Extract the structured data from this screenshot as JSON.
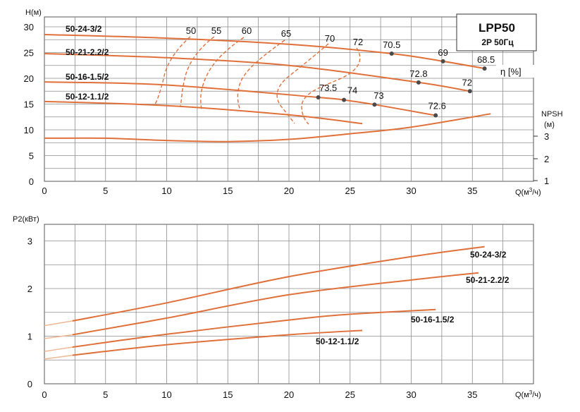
{
  "chart_data": [
    {
      "type": "line",
      "title": "LPP50",
      "subtitle": "2P  50Гц",
      "ylabel": "H(м)",
      "xlabel": "Q(м³/ч)",
      "xlim": [
        0,
        40
      ],
      "ylim": [
        0,
        31
      ],
      "x_ticks": [
        "0",
        "5",
        "10",
        "15",
        "20",
        "25",
        "30",
        "35"
      ],
      "y_ticks": [
        "0",
        "5",
        "10",
        "15",
        "20",
        "25",
        "30"
      ],
      "grid": true,
      "series": [
        {
          "name": "50-24-3/2",
          "x": [
            0,
            10,
            20,
            28.4,
            32.6,
            36
          ],
          "y": [
            28.5,
            27.8,
            26.6,
            24.8,
            23.3,
            21.9
          ]
        },
        {
          "name": "50-21-2.2/2",
          "x": [
            0,
            10,
            20,
            30.6,
            34.8
          ],
          "y": [
            24.8,
            24.0,
            22.5,
            19.2,
            17.5
          ]
        },
        {
          "name": "50-16-1.5/2",
          "x": [
            0,
            10,
            22.4,
            24.5,
            27.0,
            32.0
          ],
          "y": [
            19.3,
            18.7,
            16.3,
            15.8,
            14.9,
            12.8
          ]
        },
        {
          "name": "50-12-1.1/2",
          "x": [
            0,
            10,
            20,
            26
          ],
          "y": [
            15.5,
            14.7,
            12.9,
            11.2
          ]
        }
      ],
      "efficiency_points": [
        {
          "label": "70.5",
          "x": 28.4,
          "y": 24.8
        },
        {
          "label": "69",
          "x": 32.6,
          "y": 23.3
        },
        {
          "label": "68.5",
          "x": 36.0,
          "y": 21.9
        },
        {
          "label": "72.8",
          "x": 30.6,
          "y": 19.2
        },
        {
          "label": "72",
          "x": 34.8,
          "y": 17.5
        },
        {
          "label": "73.5",
          "x": 22.4,
          "y": 16.3
        },
        {
          "label": "74",
          "x": 24.5,
          "y": 15.8
        },
        {
          "label": "73",
          "x": 27.0,
          "y": 14.9
        },
        {
          "label": "72.6",
          "x": 32.0,
          "y": 12.8
        }
      ],
      "efficiency_contours": [
        "50",
        "55",
        "60",
        "65",
        "70",
        "72"
      ],
      "efficiency_label": "η [%]",
      "npsh": {
        "label": "NPSH",
        "unit": "(м)",
        "ticks": [
          "1",
          "2",
          "3"
        ],
        "ylim": [
          1,
          3
        ],
        "x": [
          0,
          5,
          10,
          15,
          20,
          25,
          30,
          36.5
        ],
        "y": [
          2.05,
          2.05,
          1.95,
          1.9,
          2.0,
          2.25,
          2.55,
          3.15
        ]
      }
    },
    {
      "type": "line",
      "ylabel": "P2(кВт)",
      "xlabel": "Q(м³/ч)",
      "xlim": [
        0,
        40
      ],
      "ylim": [
        0,
        3.3
      ],
      "x_ticks": [
        "0",
        "5",
        "10",
        "15",
        "20",
        "25",
        "30",
        "35"
      ],
      "y_ticks": [
        "0",
        "1",
        "2",
        "3"
      ],
      "grid": true,
      "series": [
        {
          "name": "50-24-3/2",
          "x": [
            0,
            2.3,
            10,
            20,
            30,
            36
          ],
          "y": [
            1.22,
            1.32,
            1.7,
            2.25,
            2.67,
            2.88
          ]
        },
        {
          "name": "50-21-2.2/2",
          "x": [
            0,
            2.3,
            10,
            20,
            30,
            35.5
          ],
          "y": [
            0.95,
            1.03,
            1.38,
            1.87,
            2.18,
            2.33
          ]
        },
        {
          "name": "50-16-1.5/2",
          "x": [
            0,
            2.3,
            10,
            20,
            25,
            32
          ],
          "y": [
            0.68,
            0.77,
            1.04,
            1.34,
            1.46,
            1.56
          ]
        },
        {
          "name": "50-12-1.1/2",
          "x": [
            0,
            2.3,
            10,
            20,
            26
          ],
          "y": [
            0.52,
            0.6,
            0.82,
            1.03,
            1.12
          ]
        }
      ]
    }
  ]
}
